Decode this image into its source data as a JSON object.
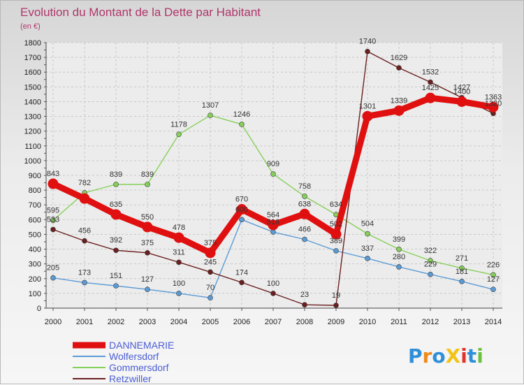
{
  "chart_data": {
    "type": "line",
    "title": "Evolution du Montant de la Dette par Habitant",
    "subtitle": "(en €)",
    "xlabel": "",
    "ylabel": "",
    "x": [
      "2000",
      "2001",
      "2002",
      "2003",
      "2004",
      "2005",
      "2006",
      "2007",
      "2008",
      "2009",
      "2010",
      "2011",
      "2012",
      "2013",
      "2014"
    ],
    "ylim": [
      0,
      1800
    ],
    "yticks": [
      0,
      100,
      200,
      300,
      400,
      500,
      600,
      700,
      800,
      900,
      1000,
      1100,
      1200,
      1300,
      1400,
      1500,
      1600,
      1700,
      1800
    ],
    "grid": true,
    "legend_position": "bottom-left",
    "series": [
      {
        "name": "DANNEMARIE",
        "color": "#e01010",
        "bold": true,
        "values": [
          843,
          743,
          635,
          550,
          478,
          375,
          670,
          564,
          638,
          502,
          1301,
          1339,
          1425,
          1400,
          1363
        ]
      },
      {
        "name": "Wolfersdorf",
        "color": "#5b9bd5",
        "values": [
          205,
          173,
          151,
          127,
          100,
          70,
          600,
          516,
          466,
          389,
          337,
          280,
          229,
          181,
          127
        ]
      },
      {
        "name": "Gommersdorf",
        "color": "#86d05a",
        "values": [
          595,
          782,
          839,
          839,
          1178,
          1307,
          1246,
          909,
          758,
          634,
          504,
          399,
          322,
          271,
          226
        ]
      },
      {
        "name": "Retzwiller",
        "color": "#6b1f1f",
        "values": [
          533,
          456,
          392,
          375,
          311,
          245,
          174,
          100,
          23,
          19,
          1740,
          1629,
          1532,
          1427,
          1320
        ]
      }
    ],
    "labels": [
      {
        "text": "843",
        "x": 0,
        "y": 843
      },
      {
        "text": "782",
        "x": 1,
        "y": 782
      },
      {
        "text": "635",
        "x": 2,
        "y": 635
      },
      {
        "text": "550",
        "x": 3,
        "y": 550
      },
      {
        "text": "478",
        "x": 4,
        "y": 478
      },
      {
        "text": "375",
        "x": 5,
        "y": 375
      },
      {
        "text": "670",
        "x": 6,
        "y": 670
      },
      {
        "text": "600",
        "x": 6,
        "y": 600
      },
      {
        "text": "564",
        "x": 7,
        "y": 564
      },
      {
        "text": "516",
        "x": 7,
        "y": 516
      },
      {
        "text": "638",
        "x": 8,
        "y": 638
      },
      {
        "text": "502",
        "x": 9,
        "y": 502
      },
      {
        "text": "1301",
        "x": 10,
        "y": 1301
      },
      {
        "text": "1339",
        "x": 11,
        "y": 1339
      },
      {
        "text": "1425",
        "x": 12,
        "y": 1425
      },
      {
        "text": "1400",
        "x": 13,
        "y": 1400
      },
      {
        "text": "1363",
        "x": 14,
        "y": 1363
      },
      {
        "text": "205",
        "x": 0,
        "y": 205
      },
      {
        "text": "173",
        "x": 1,
        "y": 173
      },
      {
        "text": "151",
        "x": 2,
        "y": 151
      },
      {
        "text": "127",
        "x": 3,
        "y": 127
      },
      {
        "text": "100",
        "x": 4,
        "y": 100
      },
      {
        "text": "70",
        "x": 5,
        "y": 70
      },
      {
        "text": "466",
        "x": 8,
        "y": 466
      },
      {
        "text": "389",
        "x": 9,
        "y": 389
      },
      {
        "text": "337",
        "x": 10,
        "y": 337
      },
      {
        "text": "280",
        "x": 11,
        "y": 280
      },
      {
        "text": "229",
        "x": 12,
        "y": 229
      },
      {
        "text": "181",
        "x": 13,
        "y": 181
      },
      {
        "text": "127",
        "x": 14,
        "y": 127
      },
      {
        "text": "595",
        "x": 0,
        "y": 595
      },
      {
        "text": "839",
        "x": 2,
        "y": 839
      },
      {
        "text": "839",
        "x": 3,
        "y": 839
      },
      {
        "text": "1178",
        "x": 4,
        "y": 1178
      },
      {
        "text": "1307",
        "x": 5,
        "y": 1307
      },
      {
        "text": "1246",
        "x": 6,
        "y": 1246
      },
      {
        "text": "909",
        "x": 7,
        "y": 909
      },
      {
        "text": "758",
        "x": 8,
        "y": 758
      },
      {
        "text": "634",
        "x": 9,
        "y": 634
      },
      {
        "text": "504",
        "x": 10,
        "y": 504
      },
      {
        "text": "399",
        "x": 11,
        "y": 399
      },
      {
        "text": "322",
        "x": 12,
        "y": 322
      },
      {
        "text": "271",
        "x": 13,
        "y": 271
      },
      {
        "text": "226",
        "x": 14,
        "y": 226
      },
      {
        "text": "533",
        "x": 0,
        "y": 533
      },
      {
        "text": "456",
        "x": 1,
        "y": 456
      },
      {
        "text": "392",
        "x": 2,
        "y": 392
      },
      {
        "text": "375",
        "x": 3,
        "y": 375
      },
      {
        "text": "311",
        "x": 4,
        "y": 311
      },
      {
        "text": "245",
        "x": 5,
        "y": 245
      },
      {
        "text": "174",
        "x": 6,
        "y": 174
      },
      {
        "text": "100",
        "x": 7,
        "y": 100
      },
      {
        "text": "23",
        "x": 8,
        "y": 23
      },
      {
        "text": "19",
        "x": 9,
        "y": 19
      },
      {
        "text": "1740",
        "x": 10,
        "y": 1740
      },
      {
        "text": "1629",
        "x": 11,
        "y": 1629
      },
      {
        "text": "1532",
        "x": 12,
        "y": 1532
      },
      {
        "text": "1427",
        "x": 13,
        "y": 1427
      },
      {
        "text": "1320",
        "x": 14,
        "y": 1320
      }
    ]
  },
  "logo": {
    "text": "ProXiti"
  }
}
